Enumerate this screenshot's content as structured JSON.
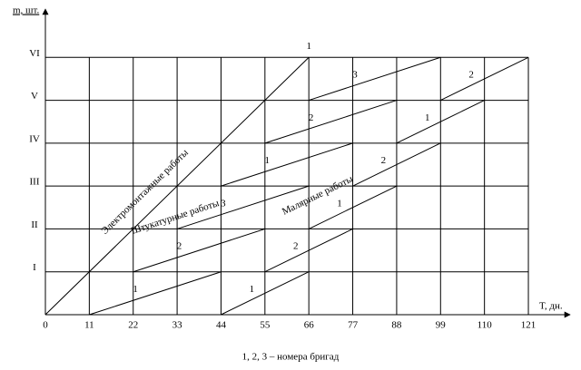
{
  "chart_data": {
    "type": "cyclogram",
    "xlabel": "T, дн.",
    "ylabel": "m, шт.",
    "caption": "1, 2, 3 – номера бригад",
    "xlim": [
      0,
      131
    ],
    "ylim": [
      0,
      7
    ],
    "xticks": [
      0,
      11,
      22,
      33,
      44,
      55,
      66,
      77,
      88,
      99,
      110,
      121
    ],
    "yticks": [
      {
        "value": 1,
        "label": "I"
      },
      {
        "value": 2,
        "label": "II"
      },
      {
        "value": 3,
        "label": "III"
      },
      {
        "value": 4,
        "label": "IV"
      },
      {
        "value": 5,
        "label": "V"
      },
      {
        "value": 6,
        "label": "VI"
      }
    ],
    "grid": true,
    "color": "#000000",
    "series": [
      {
        "name": "Электромонтажные работы",
        "segments": [
          {
            "x": [
              0,
              66
            ],
            "y": [
              0,
              6
            ],
            "label": "1"
          }
        ]
      },
      {
        "name": "Штукатурные работы",
        "segments": [
          {
            "x": [
              11,
              44
            ],
            "y": [
              0,
              1
            ],
            "label": "1"
          },
          {
            "x": [
              22,
              55
            ],
            "y": [
              1,
              2
            ],
            "label": "2"
          },
          {
            "x": [
              33,
              66
            ],
            "y": [
              2,
              3
            ],
            "label": "3"
          },
          {
            "x": [
              44,
              77
            ],
            "y": [
              3,
              4
            ],
            "label": "1"
          },
          {
            "x": [
              55,
              88
            ],
            "y": [
              4,
              5
            ],
            "label": "2"
          },
          {
            "x": [
              66,
              99
            ],
            "y": [
              5,
              6
            ],
            "label": "3"
          }
        ]
      },
      {
        "name": "Малярные работы",
        "segments": [
          {
            "x": [
              44,
              66
            ],
            "y": [
              0,
              1
            ],
            "label": "1"
          },
          {
            "x": [
              55,
              77
            ],
            "y": [
              1,
              2
            ],
            "label": "2"
          },
          {
            "x": [
              66,
              88
            ],
            "y": [
              2,
              3
            ],
            "label": "1"
          },
          {
            "x": [
              77,
              99
            ],
            "y": [
              3,
              4
            ],
            "label": "2"
          },
          {
            "x": [
              88,
              110
            ],
            "y": [
              4,
              5
            ],
            "label": "1"
          },
          {
            "x": [
              99,
              121
            ],
            "y": [
              5,
              6
            ],
            "label": "2"
          }
        ]
      }
    ]
  }
}
